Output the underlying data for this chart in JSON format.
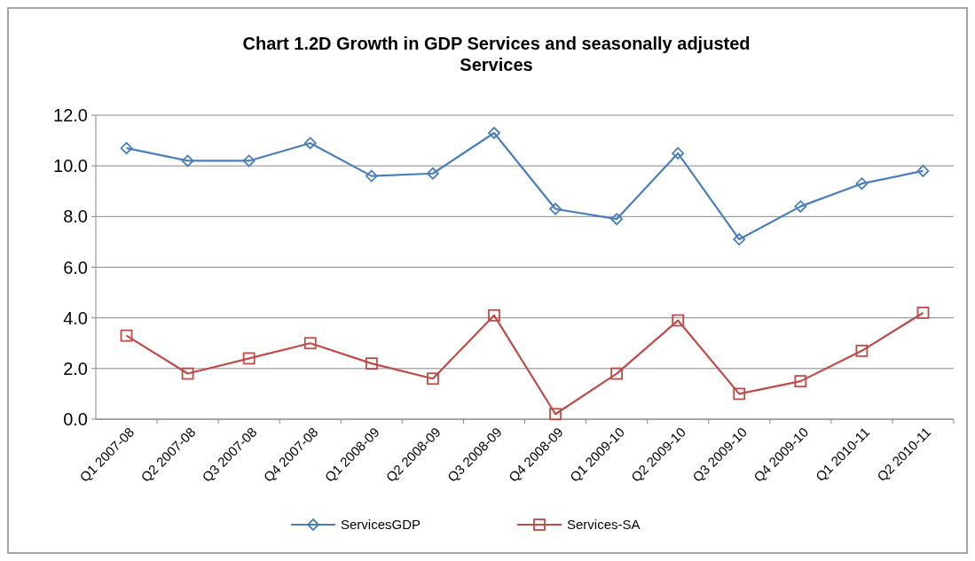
{
  "chart_data": {
    "type": "line",
    "title": "Chart 1.2D Growth in GDP Services and seasonally adjusted Services",
    "categories": [
      "Q1 2007-08",
      "Q2 2007-08",
      "Q3 2007-08",
      "Q4 2007-08",
      "Q1 2008-09",
      "Q2 2008-09",
      "Q3 2008-09",
      "Q4 2008-09",
      "Q1 2009-10",
      "Q2 2009-10",
      "Q3 2009-10",
      "Q4 2009-10",
      "Q1 2010-11",
      "Q2 2010-11"
    ],
    "series": [
      {
        "name": "ServicesGDP",
        "color": "#4a7ebb",
        "marker": "diamond",
        "values": [
          10.7,
          10.2,
          10.2,
          10.9,
          9.6,
          9.7,
          11.3,
          8.3,
          7.9,
          10.5,
          7.1,
          8.4,
          9.3,
          9.8
        ]
      },
      {
        "name": "Services-SA",
        "color": "#be4b48",
        "marker": "square",
        "values": [
          3.3,
          1.8,
          2.4,
          3.0,
          2.2,
          1.6,
          4.1,
          0.2,
          1.8,
          3.9,
          1.0,
          1.5,
          2.7,
          4.2
        ]
      }
    ],
    "ylim": [
      0,
      12
    ],
    "yticks": [
      {
        "value": 0,
        "label": "0.0"
      },
      {
        "value": 2,
        "label": "2.0"
      },
      {
        "value": 4,
        "label": "4.0"
      },
      {
        "value": 6,
        "label": "6.0"
      },
      {
        "value": 8,
        "label": "8.0"
      },
      {
        "value": 10,
        "label": "10.0"
      },
      {
        "value": 12,
        "label": "12.0"
      }
    ],
    "grid": "y",
    "legend": "bottom",
    "line_style": "solid"
  }
}
